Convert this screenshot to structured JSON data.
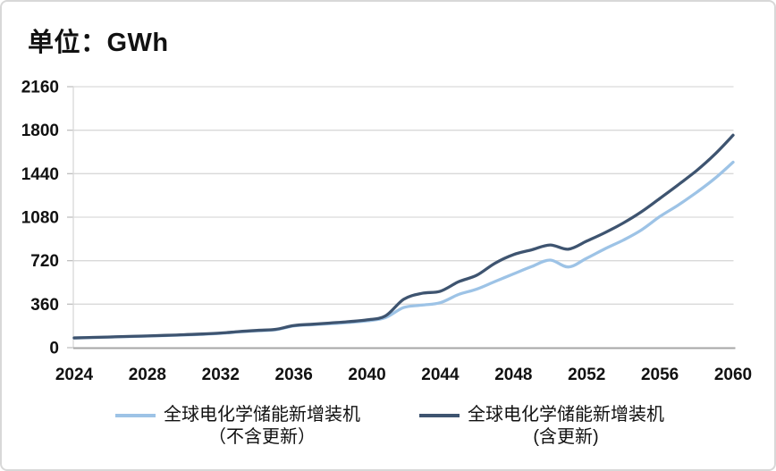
{
  "title": "单位：GWh",
  "legend": {
    "items": [
      {
        "label_line1": "全球电化学储能新增装机",
        "label_line2": "（不含更新）",
        "color": "#9dc3e6"
      },
      {
        "label_line1": "全球电化学储能新增装机",
        "label_line2": "(含更新)",
        "color": "#3e5470"
      }
    ]
  },
  "chart_data": {
    "type": "line",
    "title": "单位：GWh",
    "xlabel": "",
    "ylabel": "GWh",
    "ylim": [
      0,
      2160
    ],
    "yticks": [
      0,
      360,
      720,
      1080,
      1440,
      1800,
      2160
    ],
    "xticks": [
      2024,
      2028,
      2032,
      2036,
      2040,
      2044,
      2048,
      2052,
      2056,
      2060
    ],
    "grid": "horizontal",
    "legend_position": "bottom",
    "x": [
      2024,
      2025,
      2026,
      2027,
      2028,
      2029,
      2030,
      2031,
      2032,
      2033,
      2034,
      2035,
      2036,
      2037,
      2038,
      2039,
      2040,
      2041,
      2042,
      2043,
      2044,
      2045,
      2046,
      2047,
      2048,
      2049,
      2050,
      2051,
      2052,
      2053,
      2054,
      2055,
      2056,
      2057,
      2058,
      2059,
      2060
    ],
    "series": [
      {
        "name": "全球电化学储能新增装机（不含更新）",
        "color": "#9dc3e6",
        "values": [
          80,
          84,
          88,
          92,
          96,
          100,
          105,
          110,
          118,
          130,
          140,
          148,
          180,
          190,
          198,
          208,
          222,
          248,
          332,
          352,
          372,
          440,
          485,
          548,
          610,
          672,
          725,
          668,
          740,
          818,
          890,
          975,
          1085,
          1180,
          1285,
          1400,
          1535
        ]
      },
      {
        "name": "全球电化学储能新增装机(含更新)",
        "color": "#3e5470",
        "values": [
          81,
          85,
          89,
          93,
          97,
          102,
          107,
          113,
          121,
          133,
          143,
          152,
          183,
          194,
          204,
          215,
          230,
          262,
          400,
          450,
          467,
          545,
          600,
          700,
          770,
          810,
          850,
          815,
          882,
          952,
          1032,
          1125,
          1235,
          1348,
          1465,
          1600,
          1758
        ]
      }
    ]
  },
  "colors": {
    "gridline": "#d9d9d9",
    "axis_line": "#a6a6a6",
    "tick": "#bfbfbf",
    "text": "#111111",
    "frame_border": "#d8d8d8"
  }
}
